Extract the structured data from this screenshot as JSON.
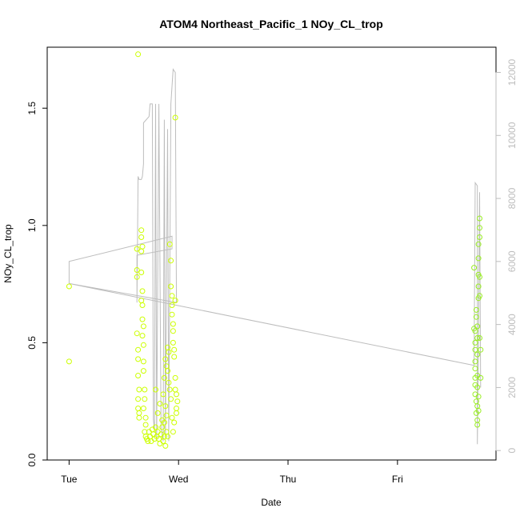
{
  "chart_data": {
    "type": "scatter",
    "title": "ATOM4 Northeast_Pacific_1 NOy_CL_trop",
    "xlabel": "Date",
    "ylabel": "NOy_CL_trop",
    "x_ticks": [
      "Tue",
      "Wed",
      "Thu",
      "Fri"
    ],
    "x_tick_values": [
      0,
      1,
      2,
      3
    ],
    "xlim": [
      -0.2,
      3.9
    ],
    "ylim": [
      0,
      1.76
    ],
    "y_ticks": [
      "0.0",
      "0.5",
      "1.0",
      "1.5"
    ],
    "y_tick_values": [
      0,
      0.5,
      1.0,
      1.5
    ],
    "y2lim": [
      -300,
      12800
    ],
    "y2_ticks": [
      "0",
      "2000",
      "4000",
      "6000",
      "8000",
      "10000",
      "12000"
    ],
    "y2_tick_values": [
      0,
      2000,
      4000,
      6000,
      8000,
      10000,
      12000
    ],
    "grid": false,
    "legend": "none",
    "colors": {
      "points_early": "#ccff00",
      "points_late": "#99ee22",
      "altitude_line": "#bdbdbd",
      "axis": "#000000",
      "right_axis": "#bdbdbd"
    },
    "series": [
      {
        "kind": "points",
        "axis": "left",
        "points": [
          [
            0.0,
            0.74
          ],
          [
            0.0,
            0.42
          ],
          [
            0.63,
            1.73
          ],
          [
            0.62,
            0.9
          ],
          [
            0.62,
            0.81
          ],
          [
            0.62,
            0.78
          ],
          [
            0.62,
            0.54
          ],
          [
            0.63,
            0.47
          ],
          [
            0.63,
            0.43
          ],
          [
            0.63,
            0.36
          ],
          [
            0.64,
            0.3
          ],
          [
            0.63,
            0.26
          ],
          [
            0.63,
            0.22
          ],
          [
            0.64,
            0.2
          ],
          [
            0.64,
            0.18
          ],
          [
            0.66,
            0.98
          ],
          [
            0.66,
            0.95
          ],
          [
            0.67,
            0.91
          ],
          [
            0.66,
            0.89
          ],
          [
            0.66,
            0.8
          ],
          [
            0.67,
            0.72
          ],
          [
            0.66,
            0.68
          ],
          [
            0.67,
            0.66
          ],
          [
            0.67,
            0.6
          ],
          [
            0.68,
            0.57
          ],
          [
            0.67,
            0.53
          ],
          [
            0.68,
            0.49
          ],
          [
            0.68,
            0.42
          ],
          [
            0.68,
            0.38
          ],
          [
            0.69,
            0.3
          ],
          [
            0.69,
            0.26
          ],
          [
            0.68,
            0.22
          ],
          [
            0.7,
            0.18
          ],
          [
            0.7,
            0.15
          ],
          [
            0.69,
            0.12
          ],
          [
            0.7,
            0.1
          ],
          [
            0.71,
            0.09
          ],
          [
            0.72,
            0.08
          ],
          [
            0.73,
            0.12
          ],
          [
            0.74,
            0.1
          ],
          [
            0.75,
            0.08
          ],
          [
            0.76,
            0.13
          ],
          [
            0.77,
            0.11
          ],
          [
            0.78,
            0.09
          ],
          [
            0.79,
            0.14
          ],
          [
            0.8,
            0.1
          ],
          [
            0.81,
            0.12
          ],
          [
            0.82,
            0.09
          ],
          [
            0.83,
            0.07
          ],
          [
            0.84,
            0.11
          ],
          [
            0.85,
            0.14
          ],
          [
            0.86,
            0.08
          ],
          [
            0.87,
            0.1
          ],
          [
            0.88,
            0.06
          ],
          [
            0.89,
            0.12
          ],
          [
            0.79,
            0.3
          ],
          [
            0.81,
            0.2
          ],
          [
            0.83,
            0.24
          ],
          [
            0.85,
            0.17
          ],
          [
            0.86,
            0.28
          ],
          [
            0.87,
            0.35
          ],
          [
            0.88,
            0.43
          ],
          [
            0.89,
            0.4
          ],
          [
            0.9,
            0.38
          ],
          [
            0.9,
            0.48
          ],
          [
            0.91,
            0.46
          ],
          [
            0.92,
            0.92
          ],
          [
            0.93,
            0.85
          ],
          [
            0.93,
            0.74
          ],
          [
            0.94,
            0.7
          ],
          [
            0.94,
            0.66
          ],
          [
            0.94,
            0.62
          ],
          [
            0.95,
            0.58
          ],
          [
            0.95,
            0.55
          ],
          [
            0.95,
            0.5
          ],
          [
            0.96,
            0.47
          ],
          [
            0.96,
            0.44
          ],
          [
            0.97,
            1.46
          ],
          [
            0.97,
            0.68
          ],
          [
            0.97,
            0.35
          ],
          [
            0.97,
            0.3
          ],
          [
            0.98,
            0.28
          ],
          [
            0.98,
            0.22
          ],
          [
            0.98,
            0.2
          ],
          [
            0.99,
            0.25
          ],
          [
            0.96,
            0.16
          ],
          [
            0.95,
            0.12
          ],
          [
            0.94,
            0.18
          ],
          [
            0.93,
            0.26
          ],
          [
            0.92,
            0.3
          ],
          [
            0.91,
            0.33
          ],
          [
            0.9,
            0.1
          ],
          [
            0.89,
            0.19
          ],
          [
            0.88,
            0.23
          ],
          [
            0.87,
            0.16
          ],
          [
            3.7,
            0.82
          ],
          [
            3.7,
            0.56
          ],
          [
            3.71,
            0.55
          ],
          [
            3.71,
            0.5
          ],
          [
            3.71,
            0.47
          ],
          [
            3.71,
            0.42
          ],
          [
            3.71,
            0.39
          ],
          [
            3.71,
            0.35
          ],
          [
            3.71,
            0.32
          ],
          [
            3.71,
            0.28
          ],
          [
            3.72,
            0.25
          ],
          [
            3.72,
            0.2
          ],
          [
            3.72,
            0.64
          ],
          [
            3.72,
            0.61
          ],
          [
            3.73,
            0.57
          ],
          [
            3.73,
            0.52
          ],
          [
            3.73,
            0.45
          ],
          [
            3.73,
            0.36
          ],
          [
            3.73,
            0.31
          ],
          [
            3.73,
            0.23
          ],
          [
            3.73,
            0.17
          ],
          [
            3.73,
            0.15
          ],
          [
            3.74,
            0.21
          ],
          [
            3.74,
            0.27
          ],
          [
            3.74,
            0.92
          ],
          [
            3.74,
            0.86
          ],
          [
            3.74,
            0.79
          ],
          [
            3.74,
            0.74
          ],
          [
            3.74,
            0.69
          ],
          [
            3.75,
            1.03
          ],
          [
            3.75,
            0.99
          ],
          [
            3.75,
            0.95
          ],
          [
            3.75,
            0.78
          ],
          [
            3.75,
            0.7
          ],
          [
            3.75,
            0.52
          ],
          [
            3.76,
            0.47
          ],
          [
            3.76,
            0.35
          ]
        ]
      },
      {
        "kind": "line",
        "axis": "right",
        "points": [
          [
            0.0,
            5300
          ],
          [
            0.0,
            6000
          ],
          [
            0.94,
            6800
          ],
          [
            0.94,
            6400
          ],
          [
            0.62,
            6200
          ],
          [
            0.62,
            4700
          ],
          [
            0.63,
            8700
          ],
          [
            0.64,
            8600
          ],
          [
            0.66,
            8600
          ],
          [
            0.67,
            8700
          ],
          [
            0.68,
            9100
          ],
          [
            0.68,
            10400
          ],
          [
            0.73,
            10600
          ],
          [
            0.74,
            11000
          ],
          [
            0.76,
            11000
          ],
          [
            0.77,
            1000
          ],
          [
            0.78,
            600
          ],
          [
            0.79,
            11000
          ],
          [
            0.8,
            300
          ],
          [
            0.82,
            11000
          ],
          [
            0.84,
            700
          ],
          [
            0.86,
            300
          ],
          [
            0.87,
            10500
          ],
          [
            0.88,
            400
          ],
          [
            0.9,
            10200
          ],
          [
            0.91,
            300
          ],
          [
            0.93,
            11000
          ],
          [
            0.95,
            12100
          ],
          [
            0.97,
            12000
          ],
          [
            0.98,
            5000
          ],
          [
            0.98,
            4700
          ],
          [
            0.0,
            5300
          ],
          [
            3.7,
            2700
          ],
          [
            3.71,
            8500
          ],
          [
            3.73,
            8400
          ],
          [
            3.73,
            200
          ],
          [
            3.74,
            3500
          ],
          [
            3.75,
            8200
          ],
          [
            3.76,
            2000
          ]
        ]
      }
    ]
  }
}
